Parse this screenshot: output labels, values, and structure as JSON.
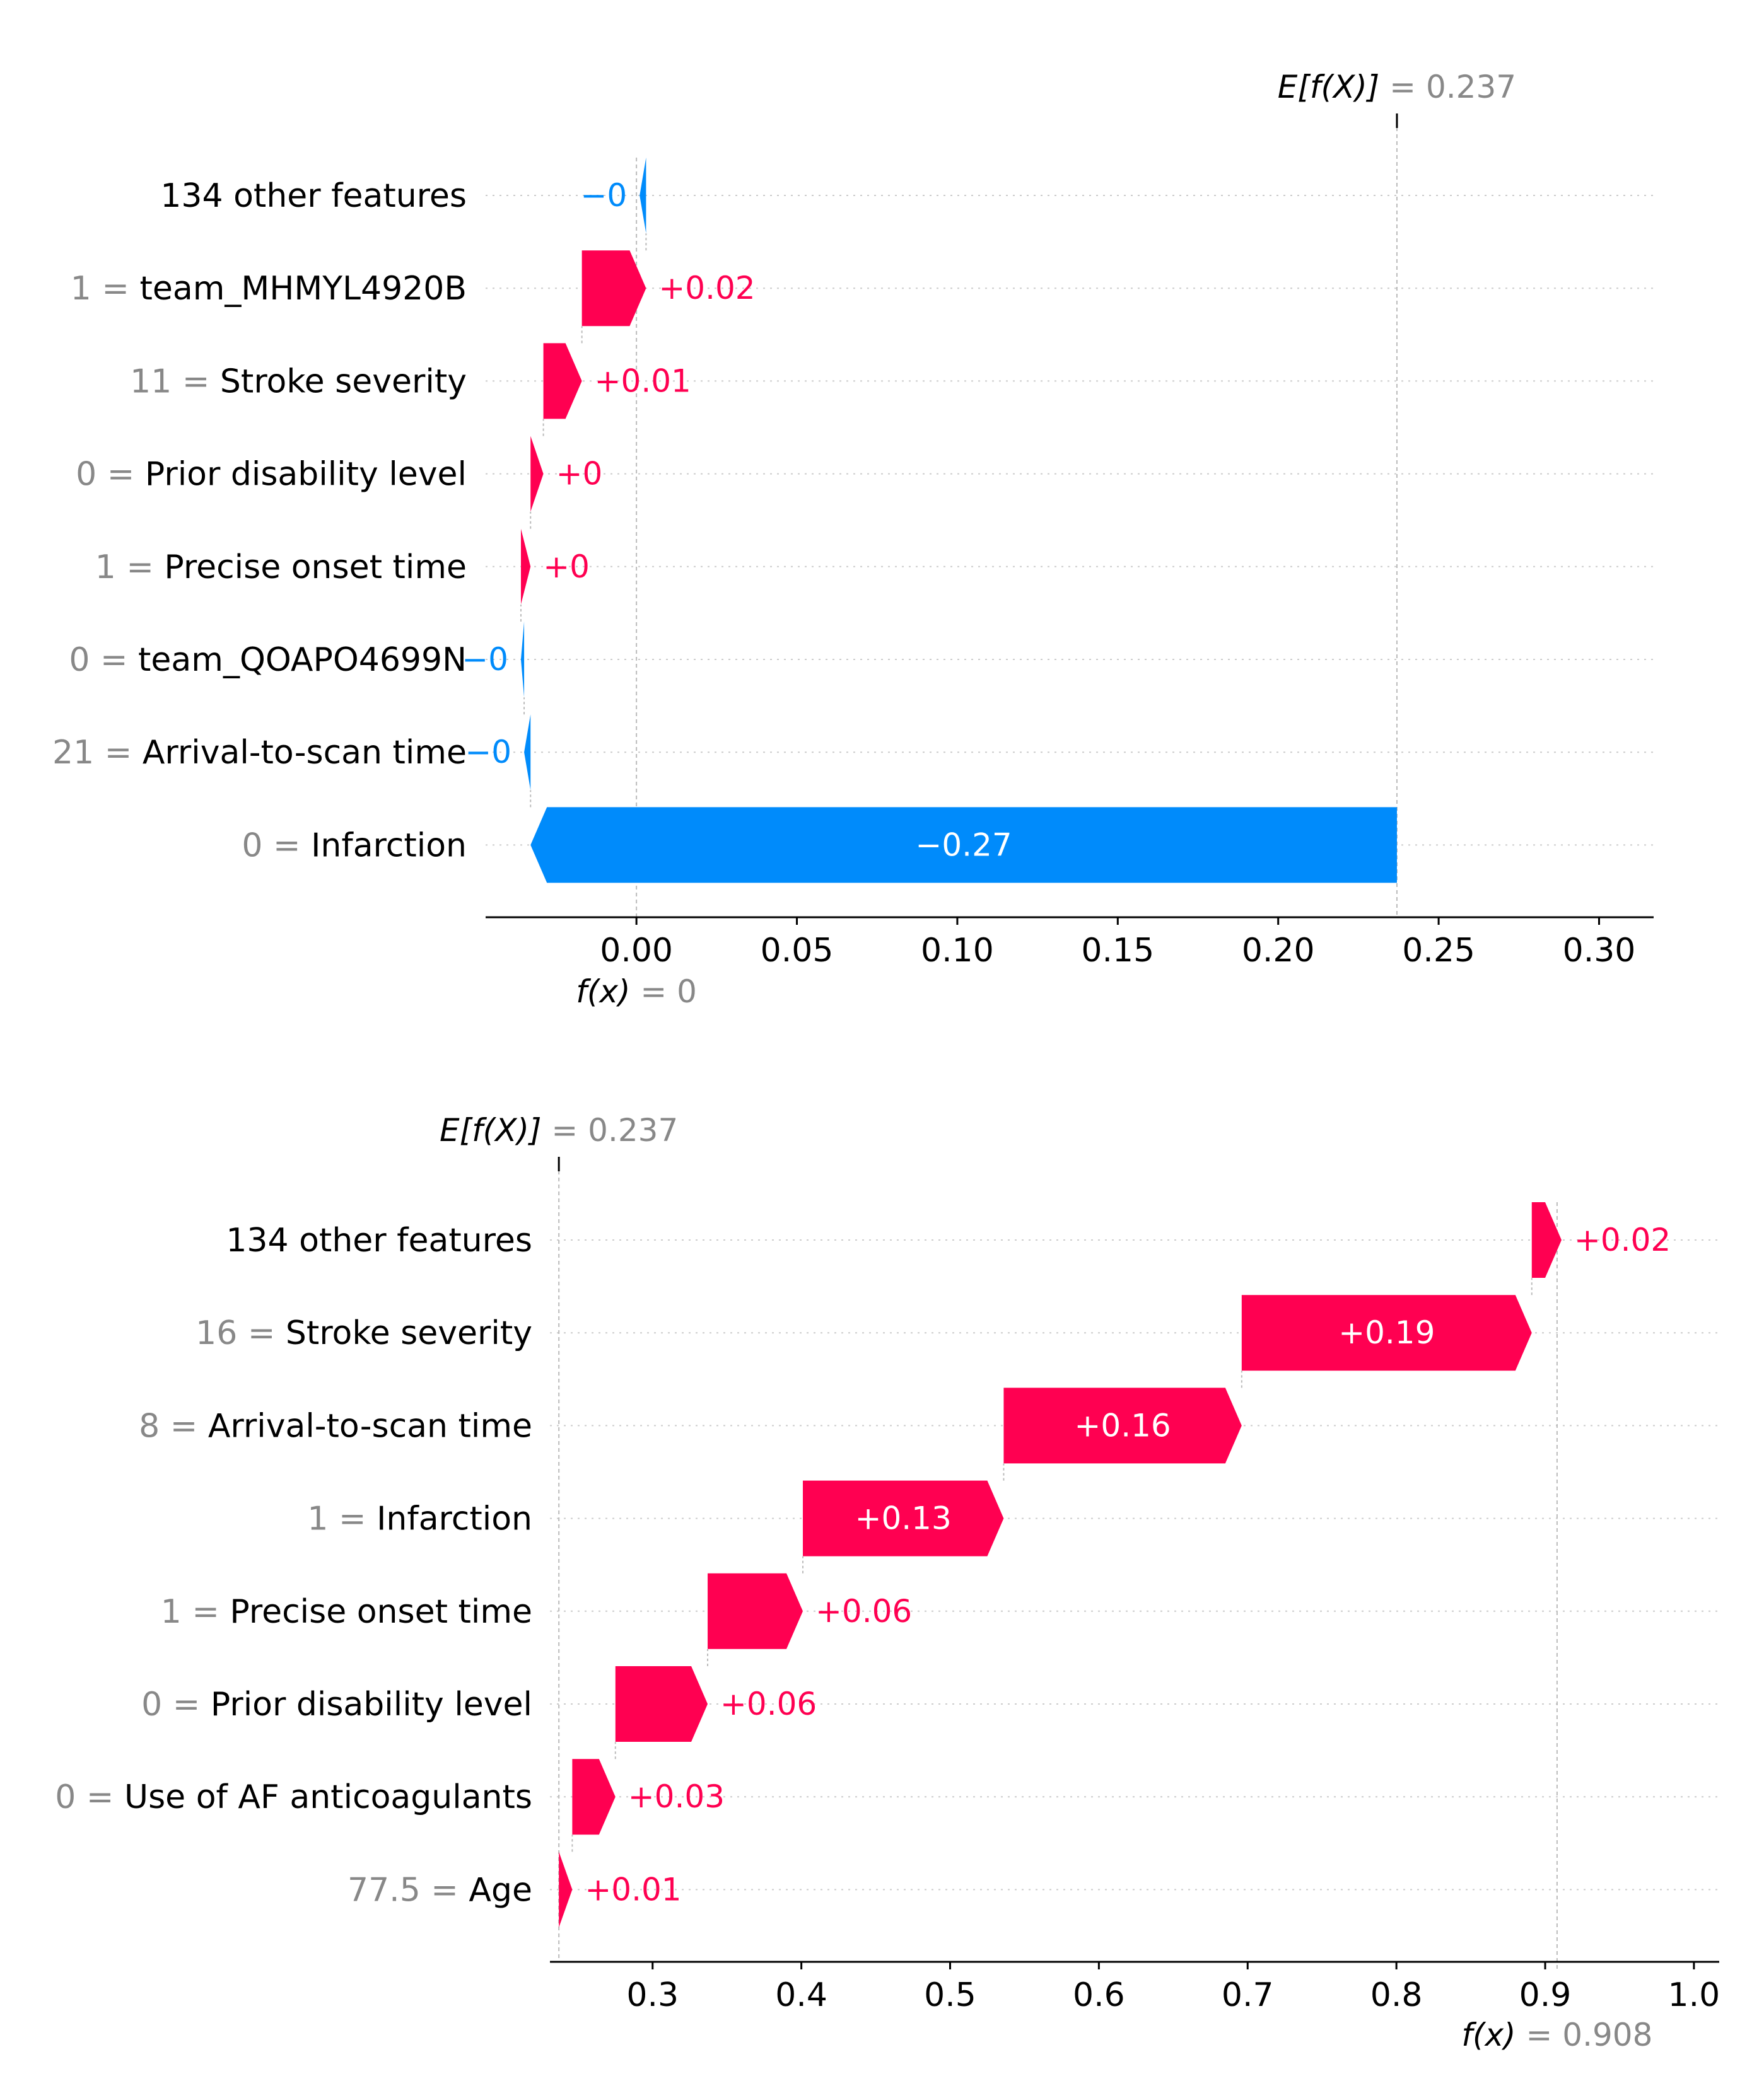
{
  "colors": {
    "positive": "#ff0051",
    "negative": "#008bfb",
    "gray": "#888888",
    "text": "#000000",
    "grid": "#cccccc"
  },
  "chart_data": [
    {
      "type": "waterfall",
      "base_label": "E[f(X)]",
      "base_eq": "= 0.237",
      "base_value": 0.237,
      "final_label": "f(x)",
      "final_eq": "= 0",
      "final_value": 0.0,
      "xlim": [
        -0.047,
        0.317
      ],
      "xticks": [
        0.0,
        0.05,
        0.1,
        0.15,
        0.2,
        0.25,
        0.3
      ],
      "xtick_labels": [
        "0.00",
        "0.05",
        "0.10",
        "0.15",
        "0.20",
        "0.25",
        "0.30"
      ],
      "features": [
        {
          "value": "",
          "name": "134 other features",
          "shap": -0.002,
          "label": "−0"
        },
        {
          "value": "1",
          "name": "team_MHMYL4920B",
          "shap": 0.02,
          "label": "+0.02"
        },
        {
          "value": "11",
          "name": "Stroke severity",
          "shap": 0.012,
          "label": "+0.01"
        },
        {
          "value": "0",
          "name": "Prior disability level",
          "shap": 0.004,
          "label": "+0"
        },
        {
          "value": "1",
          "name": "Precise onset time",
          "shap": 0.003,
          "label": "+0"
        },
        {
          "value": "0",
          "name": "team_QOAPO4699N",
          "shap": -0.001,
          "label": "−0"
        },
        {
          "value": "21",
          "name": "Arrival-to-scan time",
          "shap": -0.002,
          "label": "−0"
        },
        {
          "value": "0",
          "name": "Infarction",
          "shap": -0.27,
          "label": "−0.27"
        }
      ]
    },
    {
      "type": "waterfall",
      "base_label": "E[f(X)]",
      "base_eq": "= 0.237",
      "base_value": 0.237,
      "final_label": "f(x)",
      "final_eq": "= 0.908",
      "final_value": 0.908,
      "xlim": [
        0.231,
        1.017
      ],
      "xticks": [
        0.3,
        0.4,
        0.5,
        0.6,
        0.7,
        0.8,
        0.9,
        1.0
      ],
      "xtick_labels": [
        "0.3",
        "0.4",
        "0.5",
        "0.6",
        "0.7",
        "0.8",
        "0.9",
        "1.0"
      ],
      "features": [
        {
          "value": "",
          "name": "134 other features",
          "shap": 0.02,
          "label": "+0.02"
        },
        {
          "value": "16",
          "name": "Stroke severity",
          "shap": 0.195,
          "label": "+0.19"
        },
        {
          "value": "8",
          "name": "Arrival-to-scan time",
          "shap": 0.16,
          "label": "+0.16"
        },
        {
          "value": "1",
          "name": "Infarction",
          "shap": 0.135,
          "label": "+0.13"
        },
        {
          "value": "1",
          "name": "Precise onset time",
          "shap": 0.064,
          "label": "+0.06"
        },
        {
          "value": "0",
          "name": "Prior disability level",
          "shap": 0.062,
          "label": "+0.06"
        },
        {
          "value": "0",
          "name": "Use of AF anticoagulants",
          "shap": 0.029,
          "label": "+0.03"
        },
        {
          "value": "77.5",
          "name": "Age",
          "shap": 0.009,
          "label": "+0.01"
        }
      ]
    }
  ]
}
